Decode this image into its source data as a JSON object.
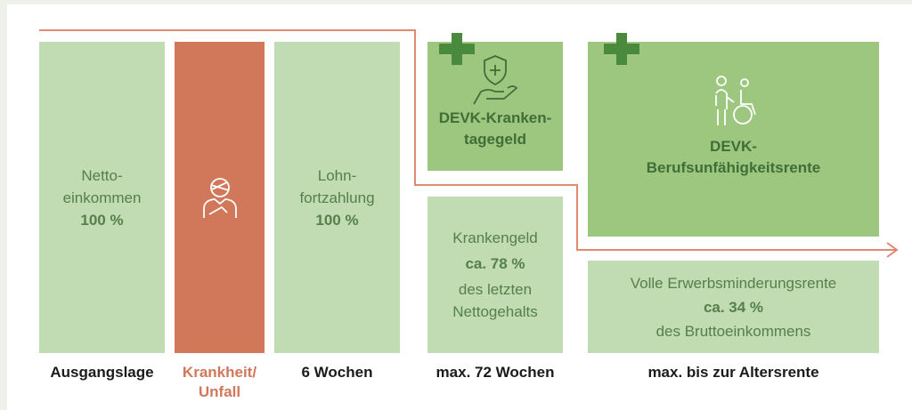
{
  "colors": {
    "light_green": "#c1dcb3",
    "mid_green": "#9dc67f",
    "dark_green": "#4a8a3e",
    "orange": "#d1775a",
    "line": "#e08a72"
  },
  "columns": [
    {
      "line1": "Netto-",
      "line2": "einkommen",
      "value": "100 %",
      "label": "Ausgangslage"
    },
    {
      "icon": "injured-person-icon",
      "label1": "Krankheit/",
      "label2": "Unfall"
    },
    {
      "line1": "Lohn-",
      "line2": "fortzahlung",
      "value": "100 %",
      "label": "6 Wochen"
    },
    {
      "top_title1": "DEVK-Kranken-",
      "top_title2": "tagegeld",
      "top_icon": "hand-shield-icon",
      "line1": "Krankengeld",
      "value": "ca. 78 %",
      "line2": "des letzten",
      "line3": "Nettogehalts",
      "label": "max. 72 Wochen"
    },
    {
      "top_title1": "DEVK-",
      "top_title2": "Berufsunfähigkeitsrente",
      "top_icon": "wheelchair-assist-icon",
      "line1": "Volle Erwerbsminderungsrente",
      "value": "ca. 34 %",
      "line2": "des Bruttoeinkommens",
      "label": "max. bis zur Altersrente"
    }
  ]
}
